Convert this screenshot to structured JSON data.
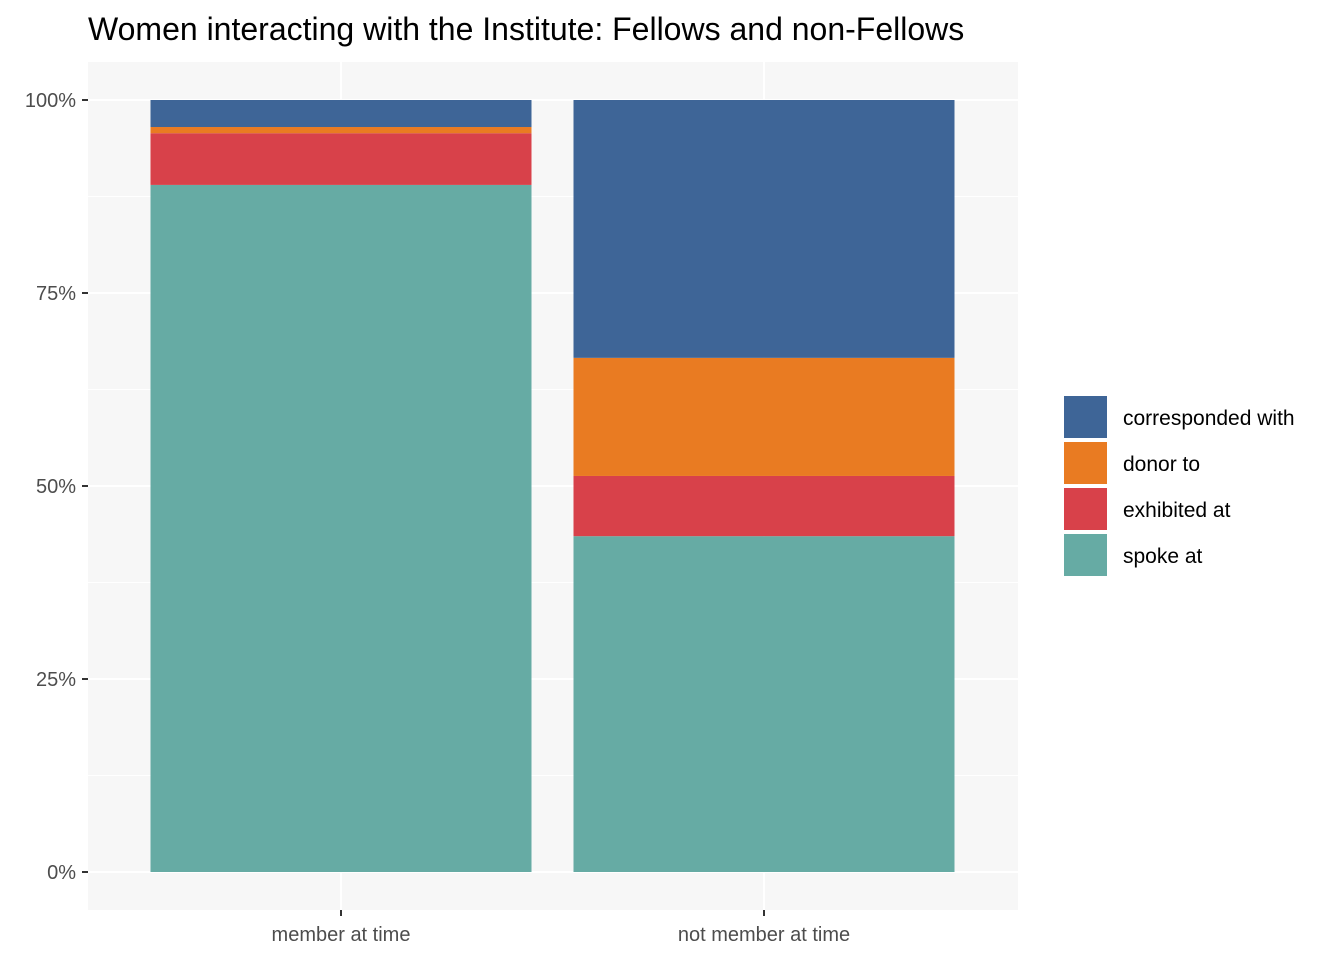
{
  "chart_data": {
    "type": "bar",
    "stacked": "percent",
    "title": "Women interacting with the Institute: Fellows and non-Fellows",
    "xlabel": "",
    "ylabel": "",
    "categories": [
      "member at time",
      "not member at time"
    ],
    "y_ticks": [
      "0%",
      "25%",
      "50%",
      "75%",
      "100%"
    ],
    "ylim": [
      0,
      1
    ],
    "grid": true,
    "legend_position": "right",
    "series": [
      {
        "name": "spoke at",
        "color": "#66aba4",
        "values": [
          0.89,
          0.435
        ]
      },
      {
        "name": "exhibited at",
        "color": "#d8414a",
        "values": [
          0.067,
          0.078
        ]
      },
      {
        "name": "donor to",
        "color": "#e97b22",
        "values": [
          0.008,
          0.153
        ]
      },
      {
        "name": "corresponded with",
        "color": "#3e6597",
        "values": [
          0.035,
          0.334
        ]
      }
    ],
    "legend_order": [
      "corresponded with",
      "donor to",
      "exhibited at",
      "spoke at"
    ]
  }
}
